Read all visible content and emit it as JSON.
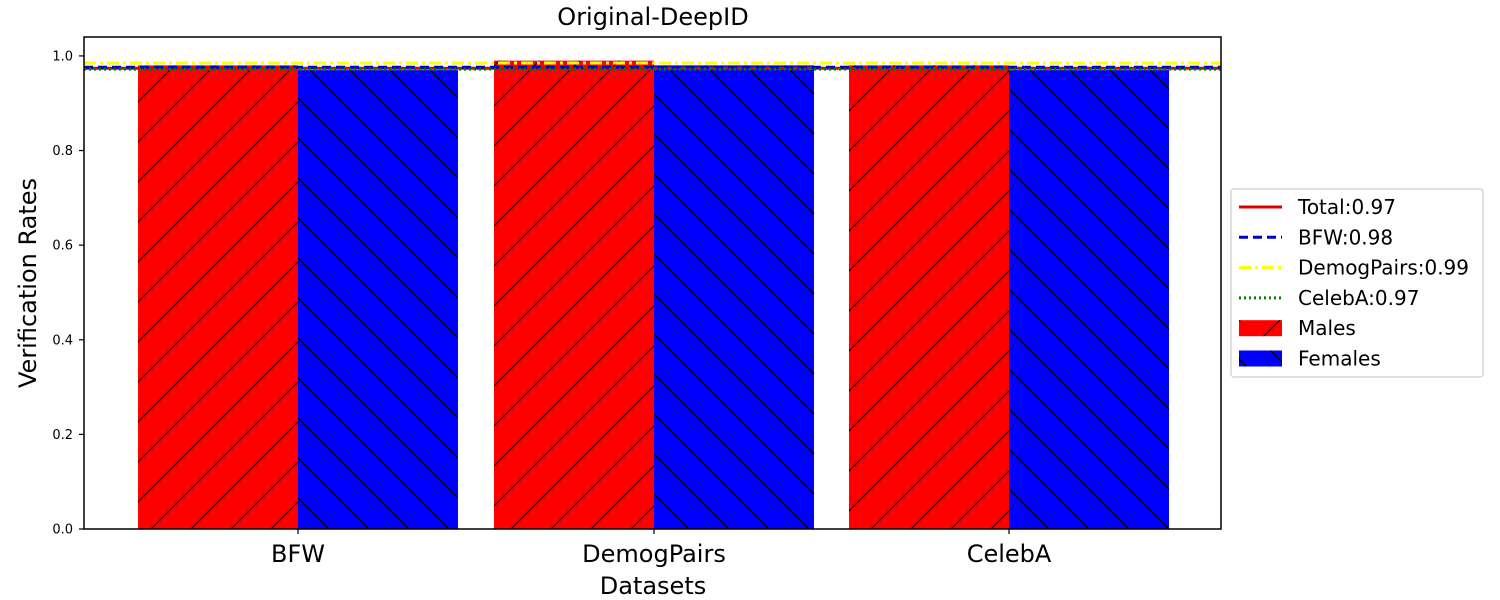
{
  "chart_data": {
    "type": "bar",
    "title": "Original-DeepID",
    "xlabel": "Datasets",
    "ylabel": "Verification Rates",
    "categories": [
      "BFW",
      "DemogPairs",
      "CelebA"
    ],
    "ylim": [
      0,
      1.0
    ],
    "yticks": [
      "0.0",
      "0.2",
      "0.4",
      "0.6",
      "0.8",
      "1.0"
    ],
    "series": [
      {
        "name": "Males",
        "values": [
          0.98,
          0.99,
          0.98
        ],
        "color": "#ff0000",
        "hatch": "/"
      },
      {
        "name": "Females",
        "values": [
          0.97,
          0.98,
          0.97
        ],
        "color": "#0000ff",
        "hatch": "\\"
      }
    ],
    "reference_lines": [
      {
        "label": "Total:0.97",
        "value": 0.974,
        "color": "#e00000",
        "style": "solid"
      },
      {
        "label": "BFW:0.98",
        "value": 0.976,
        "color": "#0000cc",
        "style": "dashed"
      },
      {
        "label": "DemogPairs:0.99",
        "value": 0.985,
        "color": "#ffff00",
        "style": "dashdot"
      },
      {
        "label": "CelebA:0.97",
        "value": 0.972,
        "color": "#008000",
        "style": "dotted"
      }
    ],
    "legend": {
      "placement": "right",
      "entries": [
        "Total:0.97",
        "BFW:0.98",
        "DemogPairs:0.99",
        "CelebA:0.97",
        "Males",
        "Females"
      ]
    },
    "grid": false
  }
}
